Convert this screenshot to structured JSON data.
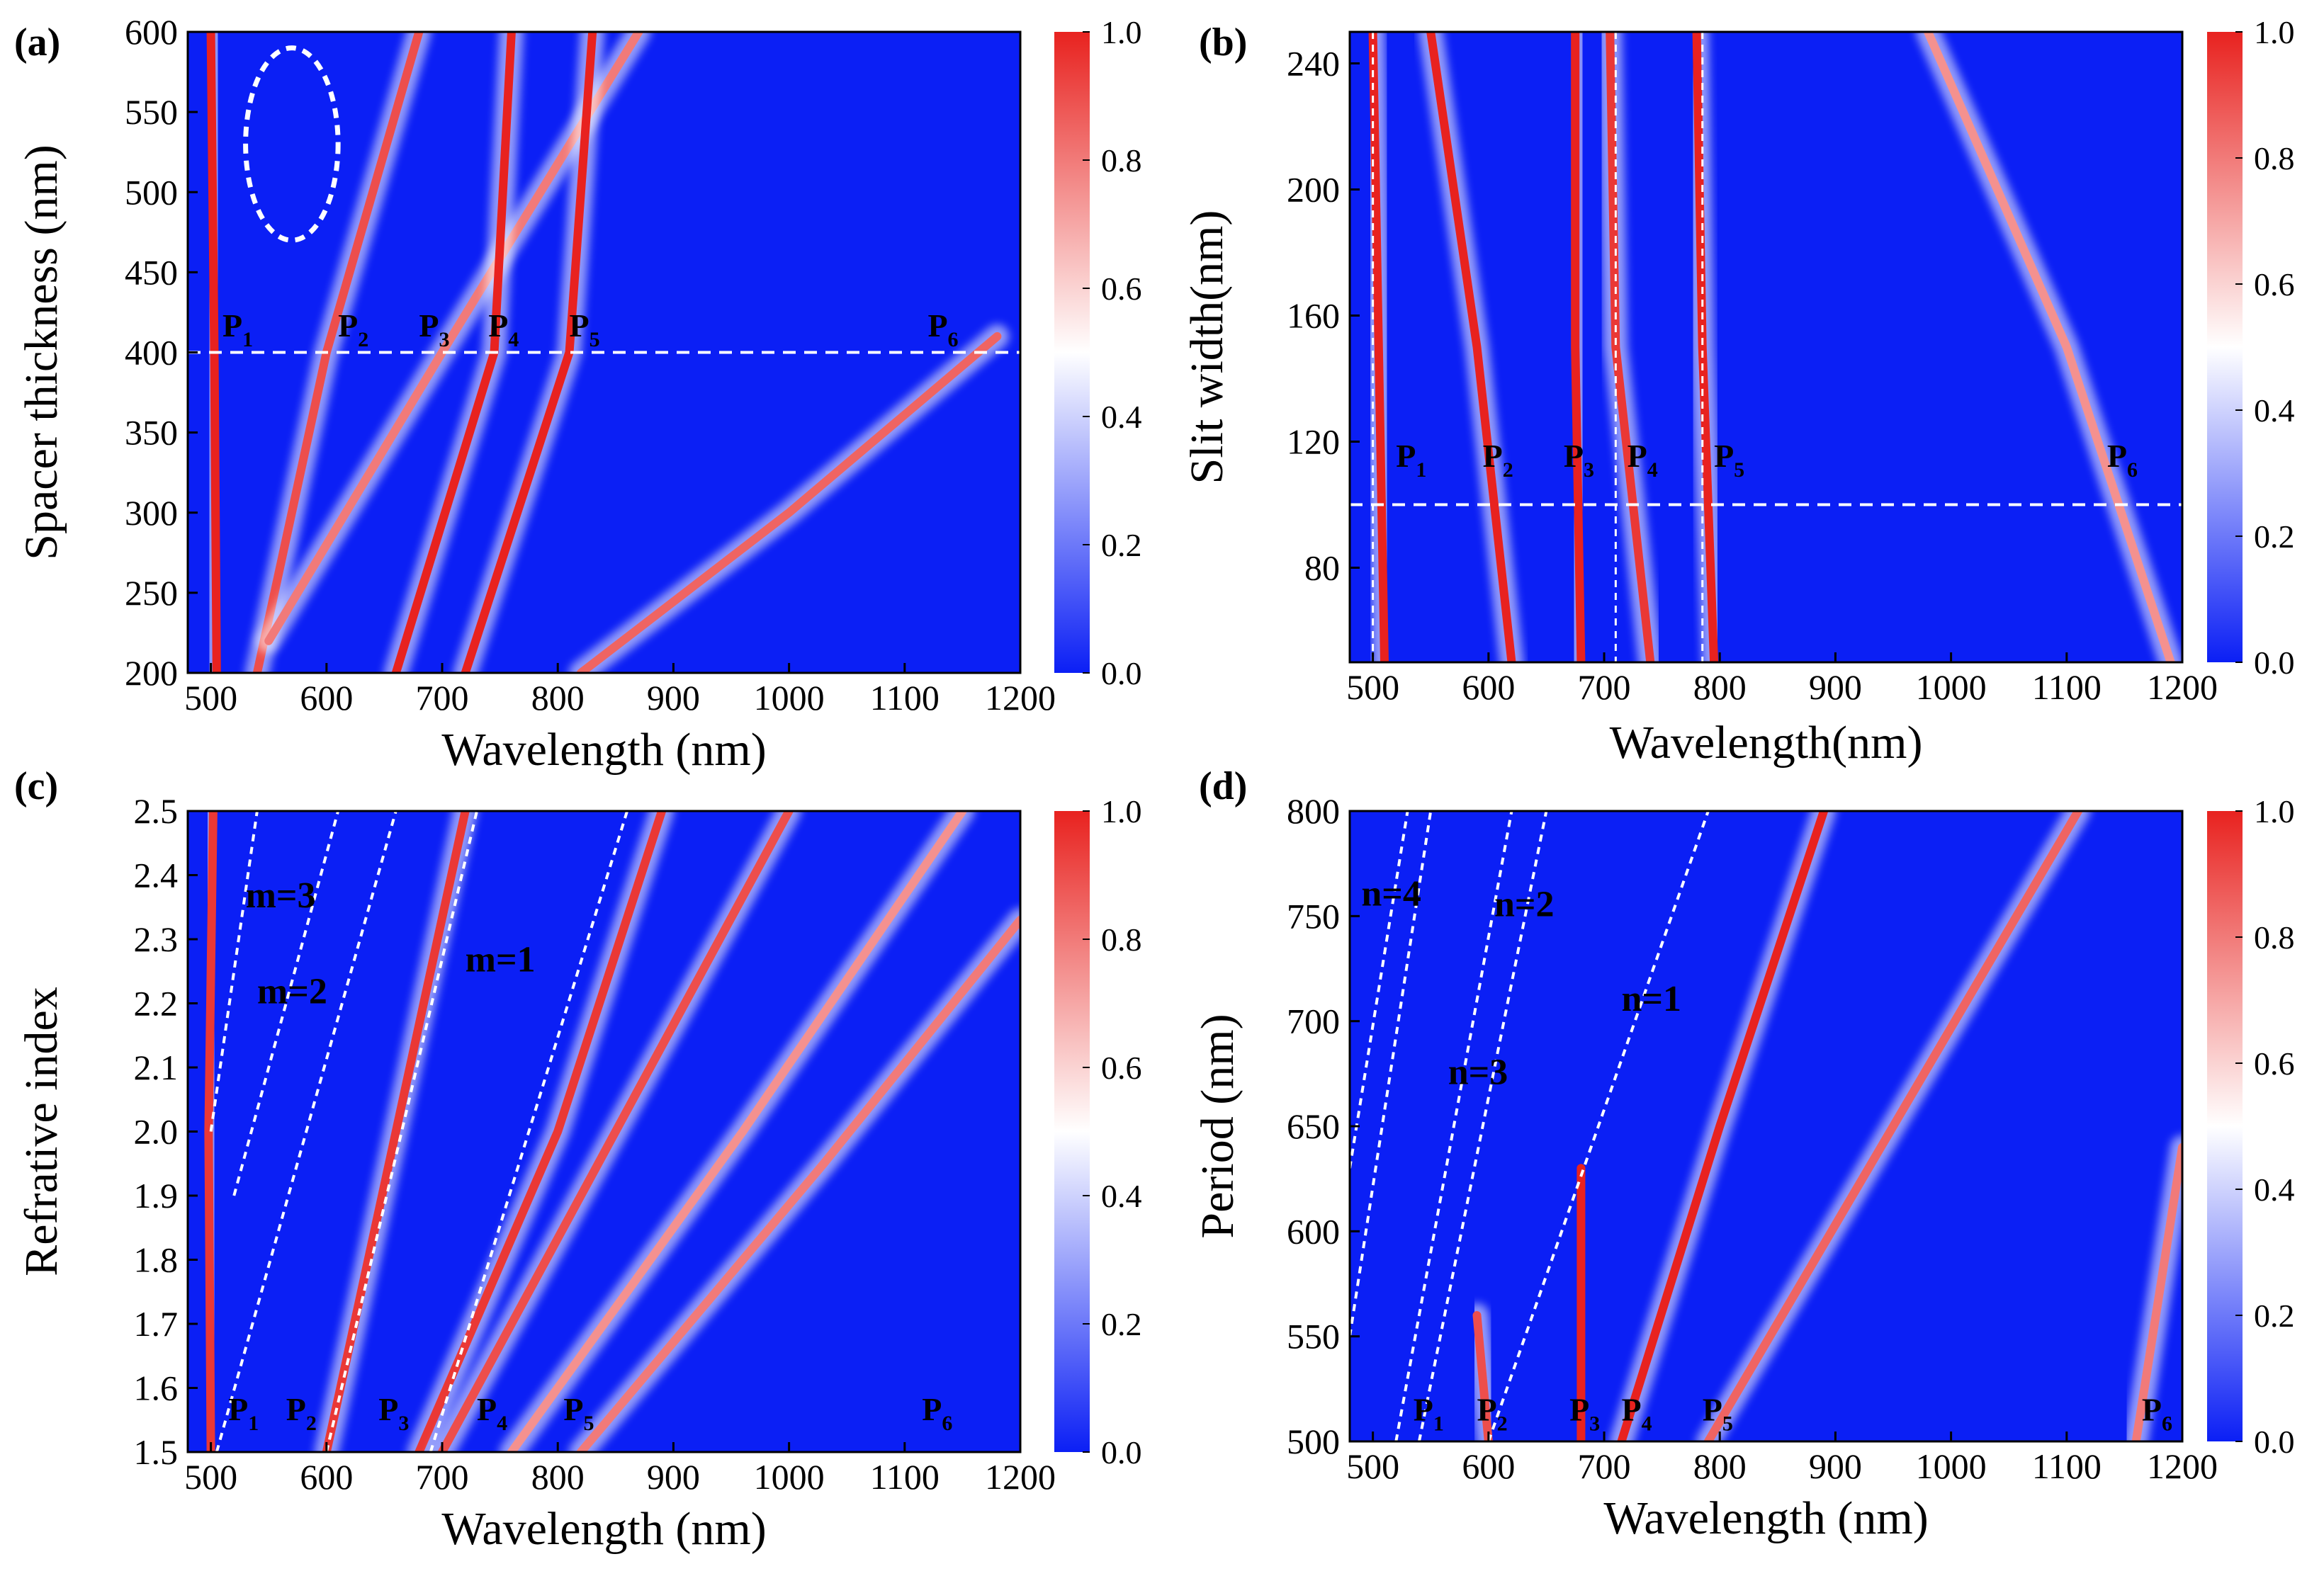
{
  "colorscale": {
    "low": "#0b1ff5",
    "mid": "#ffffff",
    "high": "#e8221f"
  },
  "chart_data": [
    {
      "type": "heatmap",
      "panel": "(a)",
      "xlabel": "Wavelength (nm)",
      "ylabel": "Spacer thickness (nm)",
      "xlim": [
        480,
        1200
      ],
      "ylim": [
        200,
        600
      ],
      "xticks": [
        500,
        600,
        700,
        800,
        900,
        1000,
        1100,
        1200
      ],
      "yticks": [
        200,
        250,
        300,
        350,
        400,
        450,
        500,
        550,
        600
      ],
      "colorbar": {
        "range": [
          0.0,
          1.0
        ],
        "ticks": [
          "0.0",
          "0.2",
          "0.4",
          "0.6",
          "0.8",
          "1.0"
        ]
      },
      "bands": [
        {
          "points": [
            [
              505,
              200
            ],
            [
              503,
              400
            ],
            [
              500,
              600
            ]
          ],
          "intensity": 1.0
        },
        {
          "points": [
            [
              540,
              200
            ],
            [
              600,
              400
            ],
            [
              680,
              600
            ]
          ],
          "intensity": 0.8
        },
        {
          "points": [
            [
              550,
              220
            ],
            [
              700,
              400
            ],
            [
              870,
              600
            ]
          ],
          "intensity": 0.6
        },
        {
          "points": [
            [
              660,
              200
            ],
            [
              745,
              400
            ],
            [
              760,
              600
            ]
          ],
          "intensity": 1.0
        },
        {
          "points": [
            [
              720,
              200
            ],
            [
              810,
              400
            ],
            [
              830,
              600
            ]
          ],
          "intensity": 1.0
        },
        {
          "points": [
            [
              820,
              200
            ],
            [
              1000,
              300
            ],
            [
              1180,
              410
            ]
          ],
          "intensity": 0.7
        }
      ],
      "guide": {
        "type": "horizontal",
        "value": 400
      },
      "ellipse": {
        "cx": 570,
        "cy": 530,
        "rx": 40,
        "ry": 60
      },
      "peaks": [
        {
          "label": "P",
          "sub": "1",
          "x": 510,
          "y": 410
        },
        {
          "label": "P",
          "sub": "2",
          "x": 610,
          "y": 410
        },
        {
          "label": "P",
          "sub": "3",
          "x": 680,
          "y": 410
        },
        {
          "label": "P",
          "sub": "4",
          "x": 740,
          "y": 410
        },
        {
          "label": "P",
          "sub": "5",
          "x": 810,
          "y": 410
        },
        {
          "label": "P",
          "sub": "6",
          "x": 1120,
          "y": 410
        }
      ],
      "annotations": []
    },
    {
      "type": "heatmap",
      "panel": "(b)",
      "xlabel": "Wavelength(nm)",
      "ylabel": "Slit width(nm)",
      "xlim": [
        480,
        1200
      ],
      "ylim": [
        50,
        250
      ],
      "xticks": [
        500,
        600,
        700,
        800,
        900,
        1000,
        1100,
        1200
      ],
      "yticks": [
        80,
        120,
        160,
        200,
        240
      ],
      "colorbar": {
        "range": [
          0.0,
          1.0
        ],
        "ticks": [
          "0.0",
          "0.2",
          "0.4",
          "0.6",
          "0.8",
          "1.0"
        ]
      },
      "bands": [
        {
          "points": [
            [
              510,
              50
            ],
            [
              505,
              150
            ],
            [
              500,
              250
            ]
          ],
          "intensity": 1.0
        },
        {
          "points": [
            [
              620,
              50
            ],
            [
              590,
              150
            ],
            [
              550,
              250
            ]
          ],
          "intensity": 1.0
        },
        {
          "points": [
            [
              680,
              50
            ],
            [
              675,
              150
            ],
            [
              675,
              250
            ]
          ],
          "intensity": 1.0
        },
        {
          "points": [
            [
              740,
              50
            ],
            [
              710,
              150
            ],
            [
              705,
              250
            ]
          ],
          "intensity": 0.9
        },
        {
          "points": [
            [
              795,
              50
            ],
            [
              785,
              150
            ],
            [
              780,
              250
            ]
          ],
          "intensity": 1.0
        },
        {
          "points": [
            [
              1190,
              50
            ],
            [
              1100,
              150
            ],
            [
              980,
              250
            ]
          ],
          "intensity": 0.5
        }
      ],
      "guide": {
        "type": "horizontal",
        "value": 100
      },
      "verticals": [
        500,
        710,
        785
      ],
      "peaks": [
        {
          "label": "P",
          "sub": "1",
          "x": 520,
          "y": 112
        },
        {
          "label": "P",
          "sub": "2",
          "x": 595,
          "y": 112
        },
        {
          "label": "P",
          "sub": "3",
          "x": 665,
          "y": 112
        },
        {
          "label": "P",
          "sub": "4",
          "x": 720,
          "y": 112
        },
        {
          "label": "P",
          "sub": "5",
          "x": 795,
          "y": 112
        },
        {
          "label": "P",
          "sub": "6",
          "x": 1135,
          "y": 112
        }
      ],
      "annotations": []
    },
    {
      "type": "heatmap",
      "panel": "(c)",
      "xlabel": "Wavelength (nm)",
      "ylabel": "Refrative index",
      "xlim": [
        480,
        1200
      ],
      "ylim": [
        1.5,
        2.5
      ],
      "xticks": [
        500,
        600,
        700,
        800,
        900,
        1000,
        1100,
        1200
      ],
      "yticks": [
        1.5,
        1.6,
        1.7,
        1.8,
        1.9,
        2.0,
        2.1,
        2.2,
        2.3,
        2.4,
        2.5
      ],
      "ytickdecimals": 1,
      "colorbar": {
        "range": [
          0.0,
          1.0
        ],
        "ticks": [
          "0.0",
          "0.2",
          "0.4",
          "0.6",
          "0.8",
          "1.0"
        ]
      },
      "bands": [
        {
          "points": [
            [
              500,
              1.5
            ],
            [
              498,
              2.0
            ],
            [
              502,
              2.5
            ]
          ],
          "intensity": 0.9
        },
        {
          "points": [
            [
              600,
              1.5
            ],
            [
              660,
              2.0
            ],
            [
              720,
              2.5
            ]
          ],
          "intensity": 0.9
        },
        {
          "points": [
            [
              680,
              1.5
            ],
            [
              800,
              2.0
            ],
            [
              890,
              2.5
            ]
          ],
          "intensity": 0.9
        },
        {
          "points": [
            [
              700,
              1.5
            ],
            [
              850,
              2.0
            ],
            [
              1000,
              2.5
            ]
          ],
          "intensity": 0.8
        },
        {
          "points": [
            [
              760,
              1.5
            ],
            [
              960,
              2.0
            ],
            [
              1150,
              2.5
            ]
          ],
          "intensity": 0.5
        },
        {
          "points": [
            [
              820,
              1.5
            ],
            [
              1030,
              1.95
            ],
            [
              1200,
              2.33
            ]
          ],
          "intensity": 0.6
        }
      ],
      "dashes": [
        [
          [
            500,
            2.0
          ],
          [
            540,
            2.5
          ]
        ],
        [
          [
            520,
            1.9
          ],
          [
            610,
            2.5
          ]
        ],
        [
          [
            505,
            1.5
          ],
          [
            660,
            2.5
          ]
        ],
        [
          [
            600,
            1.5
          ],
          [
            730,
            2.5
          ]
        ],
        [
          [
            690,
            1.5
          ],
          [
            860,
            2.5
          ]
        ]
      ],
      "peaks": [
        {
          "label": "P",
          "sub": "1",
          "x": 515,
          "y": 1.55
        },
        {
          "label": "P",
          "sub": "2",
          "x": 565,
          "y": 1.55
        },
        {
          "label": "P",
          "sub": "3",
          "x": 645,
          "y": 1.55
        },
        {
          "label": "P",
          "sub": "4",
          "x": 730,
          "y": 1.55
        },
        {
          "label": "P",
          "sub": "5",
          "x": 805,
          "y": 1.55
        },
        {
          "label": "P",
          "sub": "6",
          "x": 1115,
          "y": 1.55
        }
      ],
      "annotations": [
        {
          "text": "m=3",
          "x": 530,
          "y": 2.35
        },
        {
          "text": "m=2",
          "x": 540,
          "y": 2.2
        },
        {
          "text": "m=1",
          "x": 720,
          "y": 2.25
        }
      ]
    },
    {
      "type": "heatmap",
      "panel": "(d)",
      "xlabel": "Wavelength (nm)",
      "ylabel": "Period (nm)",
      "xlim": [
        480,
        1200
      ],
      "ylim": [
        500,
        800
      ],
      "xticks": [
        500,
        600,
        700,
        800,
        900,
        1000,
        1100,
        1200
      ],
      "yticks": [
        500,
        550,
        600,
        650,
        700,
        750,
        800
      ],
      "colorbar": {
        "range": [
          0.0,
          1.0
        ],
        "ticks": [
          "0.0",
          "0.2",
          "0.4",
          "0.6",
          "0.8",
          "1.0"
        ]
      },
      "bands": [
        {
          "points": [
            [
              600,
              500
            ],
            [
              590,
              560
            ]
          ],
          "intensity": 0.8
        },
        {
          "points": [
            [
              680,
              500
            ],
            [
              680,
              630
            ]
          ],
          "intensity": 1.0
        },
        {
          "points": [
            [
              715,
              500
            ],
            [
              800,
              650
            ],
            [
              890,
              800
            ]
          ],
          "intensity": 1.0
        },
        {
          "points": [
            [
              790,
              500
            ],
            [
              950,
              650
            ],
            [
              1110,
              800
            ]
          ],
          "intensity": 0.7
        },
        {
          "points": [
            [
              1160,
              500
            ],
            [
              1180,
              570
            ],
            [
              1200,
              640
            ]
          ],
          "intensity": 0.6
        }
      ],
      "dashes": [
        [
          [
            480,
            550
          ],
          [
            550,
            800
          ]
        ],
        [
          [
            480,
            630
          ],
          [
            530,
            800
          ]
        ],
        [
          [
            520,
            500
          ],
          [
            620,
            800
          ]
        ],
        [
          [
            540,
            500
          ],
          [
            650,
            800
          ]
        ],
        [
          [
            600,
            500
          ],
          [
            790,
            800
          ]
        ]
      ],
      "peaks": [
        {
          "label": "P",
          "sub": "1",
          "x": 535,
          "y": 510
        },
        {
          "label": "P",
          "sub": "2",
          "x": 590,
          "y": 510
        },
        {
          "label": "P",
          "sub": "3",
          "x": 670,
          "y": 510
        },
        {
          "label": "P",
          "sub": "4",
          "x": 715,
          "y": 510
        },
        {
          "label": "P",
          "sub": "5",
          "x": 785,
          "y": 510
        },
        {
          "label": "P",
          "sub": "6",
          "x": 1165,
          "y": 510
        }
      ],
      "annotations": [
        {
          "text": "n=4",
          "x": 490,
          "y": 755
        },
        {
          "text": "n=2",
          "x": 605,
          "y": 750
        },
        {
          "text": "n=1",
          "x": 715,
          "y": 705
        },
        {
          "text": "n=3",
          "x": 565,
          "y": 670
        }
      ]
    }
  ]
}
